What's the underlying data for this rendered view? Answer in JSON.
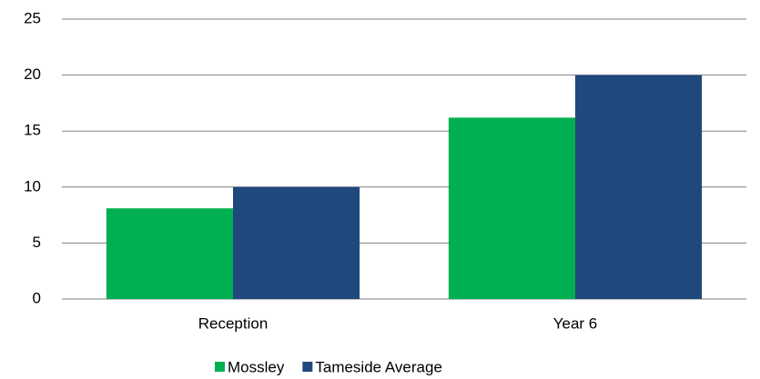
{
  "chart_data": {
    "type": "bar",
    "categories": [
      "Reception",
      "Year 6"
    ],
    "series": [
      {
        "name": "Mossley",
        "color": "#00b050",
        "values": [
          8.1,
          16.2
        ]
      },
      {
        "name": "Tameside Average",
        "color": "#1f497d",
        "values": [
          10.0,
          20.0
        ]
      }
    ],
    "ylim": [
      0,
      25
    ],
    "yticks": [
      0,
      5,
      10,
      15,
      20,
      25
    ],
    "grid": true,
    "legend": "bottom"
  }
}
